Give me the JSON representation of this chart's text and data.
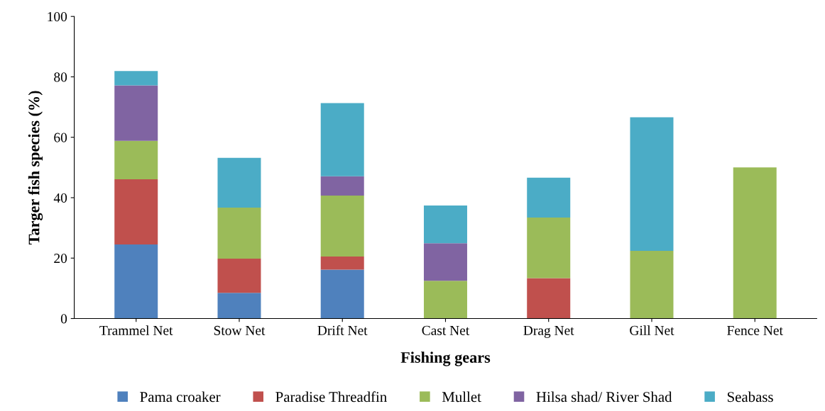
{
  "chart_data": {
    "type": "bar",
    "stacked": true,
    "xlabel": "Fishing gears",
    "ylabel": "Targer fish species (%)",
    "categories": [
      "Trammel Net",
      "Stow Net",
      "Drift Net",
      "Cast Net",
      "Drag Net",
      "Gill Net",
      "Fence Net"
    ],
    "series": [
      {
        "name": "Pama croaker",
        "color": "#4f81bd",
        "values": [
          24.5,
          8.5,
          16.2,
          null,
          null,
          null,
          null
        ]
      },
      {
        "name": "Paradise Threadfin",
        "color": "#c0504d",
        "values": [
          21.6,
          11.3,
          4.3,
          null,
          13.4,
          null,
          null
        ]
      },
      {
        "name": "Mullet",
        "color": "#9bbb59",
        "values": [
          12.7,
          16.9,
          20.2,
          12.5,
          20.0,
          22.4,
          50.0
        ]
      },
      {
        "name": "Hilsa shad/ River Shad",
        "color": "#8064a2",
        "values": [
          18.4,
          null,
          6.4,
          12.4,
          null,
          null,
          null
        ]
      },
      {
        "name": "Seabass",
        "color": "#4bacc6",
        "values": [
          4.7,
          16.5,
          24.2,
          12.5,
          13.2,
          44.2,
          null
        ]
      }
    ],
    "ylim": [
      0,
      100
    ],
    "yticks": [
      0,
      20,
      40,
      60,
      80,
      100
    ],
    "grid": false,
    "legend": "bottom"
  }
}
